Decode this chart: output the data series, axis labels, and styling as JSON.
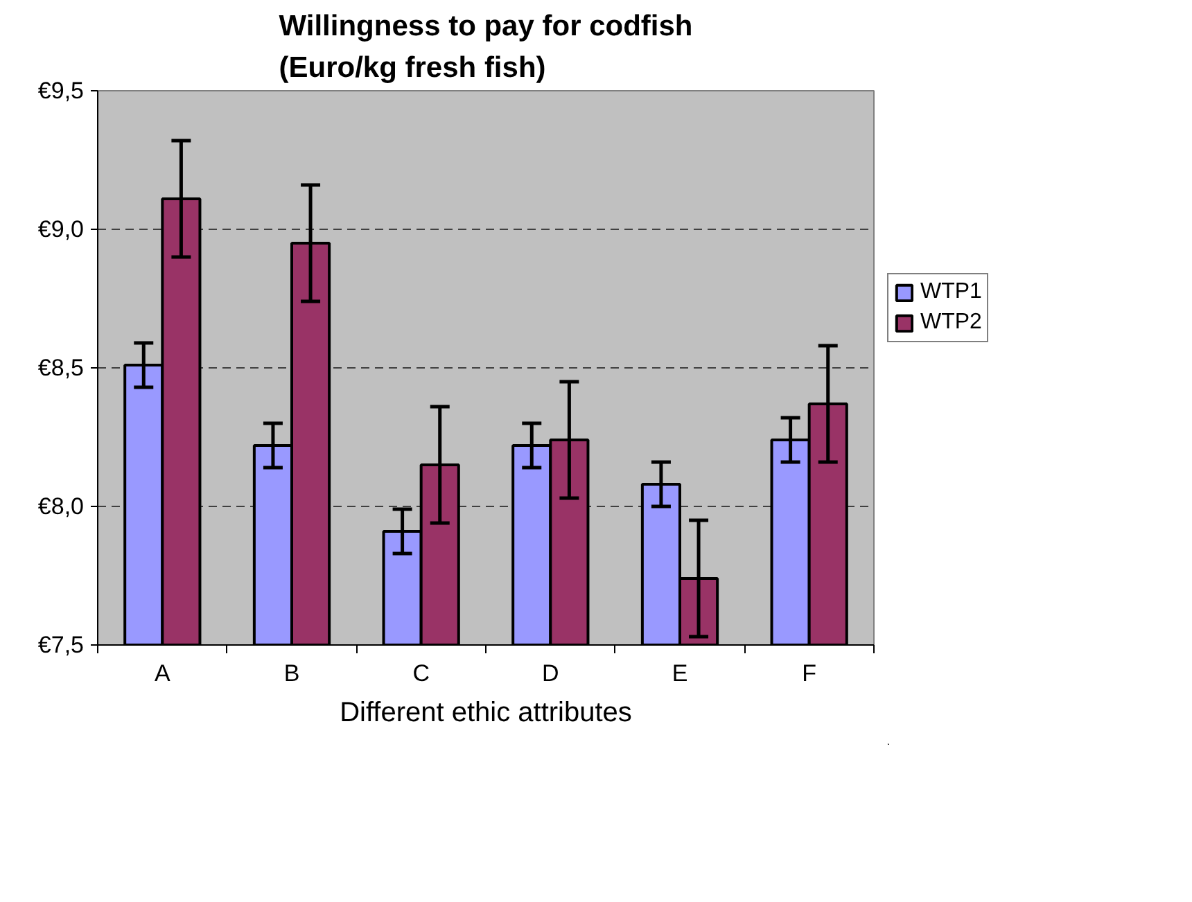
{
  "chart_data": {
    "type": "bar",
    "title": "Willingness to pay for codfish\n(Euro/kg fresh fish)",
    "xlabel": "Different ethic attributes",
    "categories": [
      "A",
      "B",
      "C",
      "D",
      "E",
      "F"
    ],
    "series": [
      {
        "name": "WTP1",
        "color": "#9999ff",
        "values": [
          8.51,
          8.22,
          7.91,
          8.22,
          8.08,
          8.24
        ],
        "errors": [
          0.08,
          0.08,
          0.08,
          0.08,
          0.08,
          0.08
        ]
      },
      {
        "name": "WTP2",
        "color": "#993366",
        "values": [
          9.11,
          8.95,
          8.15,
          8.24,
          7.74,
          8.37
        ],
        "errors": [
          0.21,
          0.21,
          0.21,
          0.21,
          0.21,
          0.21
        ]
      }
    ],
    "ylim": [
      7.5,
      9.5
    ],
    "yticks": [
      {
        "value": 7.5,
        "label": "€7,5"
      },
      {
        "value": 8.0,
        "label": "€8,0"
      },
      {
        "value": 8.5,
        "label": "€8,5"
      },
      {
        "value": 9.0,
        "label": "€9,0"
      },
      {
        "value": 9.5,
        "label": "€9,5"
      }
    ],
    "grid": "y",
    "legend": "right"
  }
}
